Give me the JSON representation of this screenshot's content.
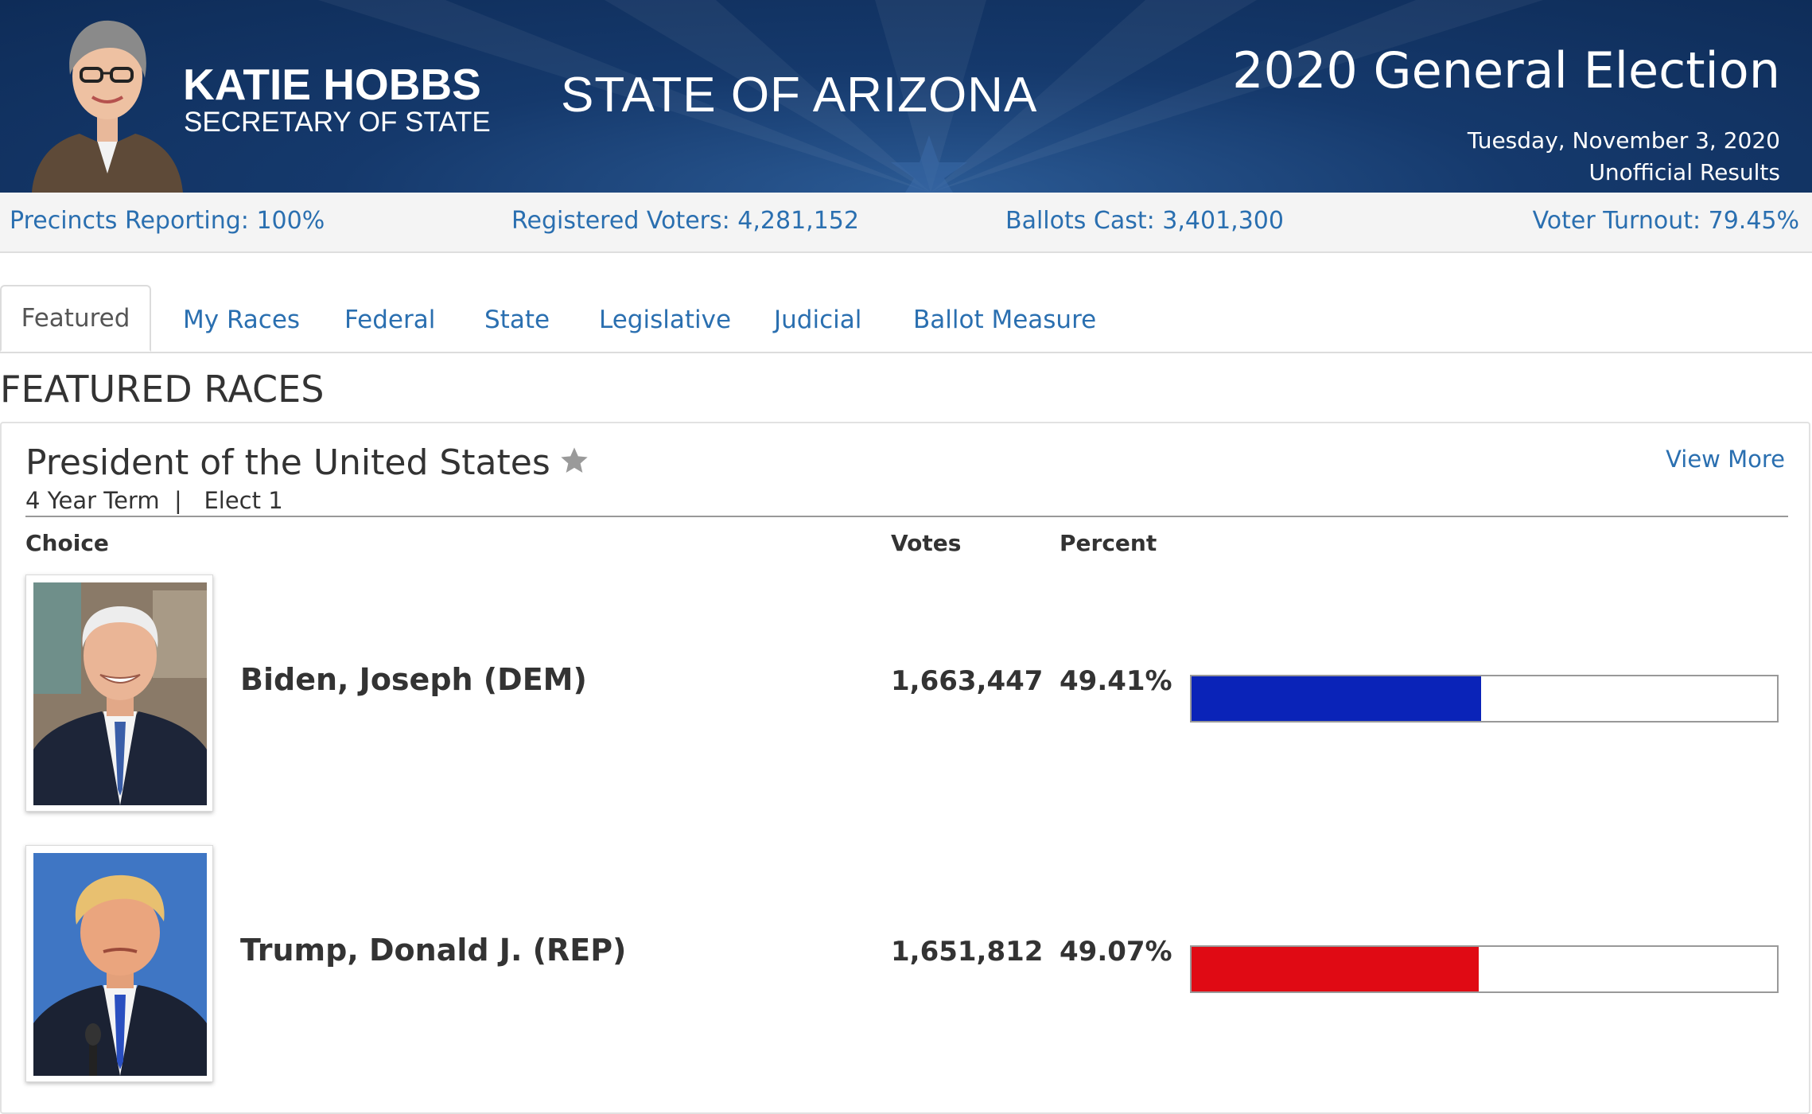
{
  "header": {
    "official_name": "KATIE HOBBS",
    "official_title": "SECRETARY OF STATE",
    "state_name": "STATE OF ARIZONA",
    "election_title": "2020 General Election",
    "election_date": "Tuesday, November 3, 2020",
    "results_status": "Unofficial Results",
    "portrait_icon": "person-portrait"
  },
  "stats": {
    "precincts": "Precincts Reporting: 100%",
    "registered": "Registered Voters: 4,281,152",
    "ballots": "Ballots Cast: 3,401,300",
    "turnout": "Voter Turnout: 79.45%"
  },
  "tabs": [
    {
      "label": "Featured",
      "active": true
    },
    {
      "label": "My Races"
    },
    {
      "label": "Federal"
    },
    {
      "label": "State"
    },
    {
      "label": "Legislative"
    },
    {
      "label": "Judicial"
    },
    {
      "label": "Ballot Measure"
    }
  ],
  "section_title": "FEATURED RACES",
  "race": {
    "title": "President of the United States",
    "meta": "4 Year Term  |   Elect 1",
    "view_more": "View More",
    "columns": {
      "choice": "Choice",
      "votes": "Votes",
      "percent": "Percent"
    },
    "candidates": [
      {
        "name": "Biden, Joseph (DEM)",
        "votes": "1,663,447",
        "percent": "49.41%",
        "share": 0.4941,
        "color": "#0a23b8"
      },
      {
        "name": "Trump, Donald J. (REP)",
        "votes": "1,651,812",
        "percent": "49.07%",
        "share": 0.4907,
        "color": "#e00a14"
      }
    ]
  },
  "colors": {
    "banner": "#15396c",
    "link": "#2a6fb0",
    "dem": "#0a23b8",
    "rep": "#e00a14"
  }
}
